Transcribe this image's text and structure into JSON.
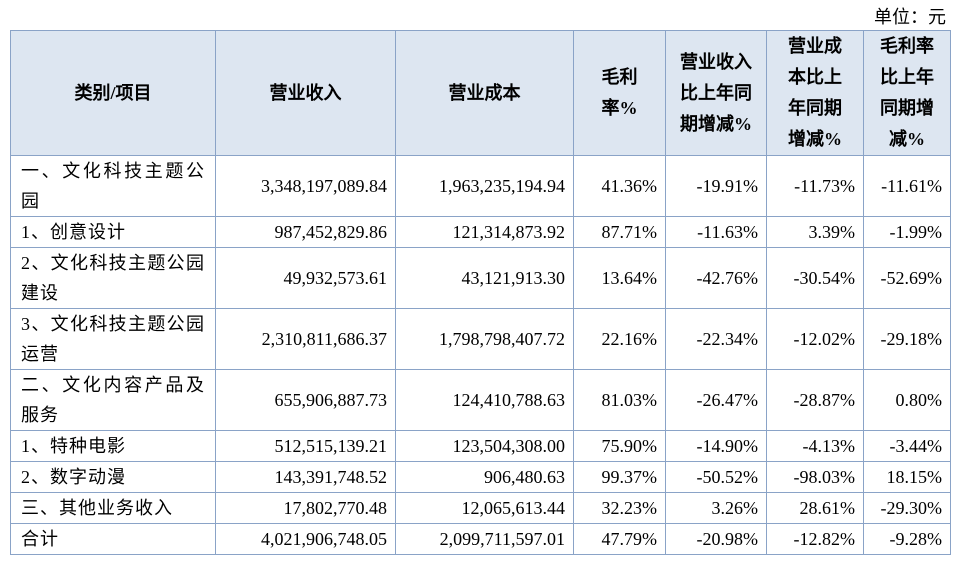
{
  "unit": "单位：元",
  "table": {
    "header": [
      "类别/项目",
      "营业收入",
      "营业成本",
      "毛利率%",
      "营业收入比上年同期增减%",
      "营业成本比上年同期增减%",
      "毛利率比上年同期增减%"
    ],
    "rows": [
      [
        "一、文化科技主题公园",
        "3,348,197,089.84",
        "1,963,235,194.94",
        "41.36%",
        "-19.91%",
        "-11.73%",
        "-11.61%"
      ],
      [
        "1、创意设计",
        "987,452,829.86",
        "121,314,873.92",
        "87.71%",
        "-11.63%",
        "3.39%",
        "-1.99%"
      ],
      [
        "2、文化科技主题公园建设",
        "49,932,573.61",
        "43,121,913.30",
        "13.64%",
        "-42.76%",
        "-30.54%",
        "-52.69%"
      ],
      [
        "3、文化科技主题公园运营",
        "2,310,811,686.37",
        "1,798,798,407.72",
        "22.16%",
        "-22.34%",
        "-12.02%",
        "-29.18%"
      ],
      [
        "二、文化内容产品及服务",
        "655,906,887.73",
        "124,410,788.63",
        "81.03%",
        "-26.47%",
        "-28.87%",
        "0.80%"
      ],
      [
        "1、特种电影",
        "512,515,139.21",
        "123,504,308.00",
        "75.90%",
        "-14.90%",
        "-4.13%",
        "-3.44%"
      ],
      [
        "2、数字动漫",
        "143,391,748.52",
        "906,480.63",
        "99.37%",
        "-50.52%",
        "-98.03%",
        "18.15%"
      ],
      [
        "三、其他业务收入",
        "17,802,770.48",
        "12,065,613.44",
        "32.23%",
        "3.26%",
        "28.61%",
        "-29.30%"
      ],
      [
        "合计",
        "4,021,906,748.05",
        "2,099,711,597.01",
        "47.79%",
        "-20.98%",
        "-12.82%",
        "-9.28%"
      ]
    ]
  }
}
